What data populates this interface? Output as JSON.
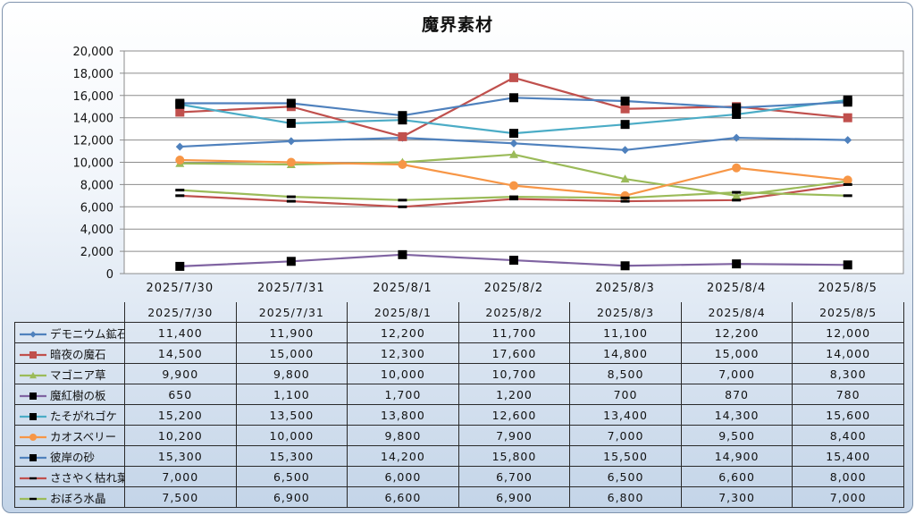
{
  "chart_data": {
    "type": "line",
    "title": "魔界素材",
    "xlabel": "",
    "ylabel": "",
    "ylim": [
      0,
      20000
    ],
    "ytick_step": 2000,
    "grid": "horizontal",
    "legend": "data-table",
    "categories": [
      "2025/7/30",
      "2025/7/31",
      "2025/8/1",
      "2025/8/2",
      "2025/8/3",
      "2025/8/4",
      "2025/8/5"
    ],
    "series": [
      {
        "name": "デモニウム鉱石",
        "values": [
          11400,
          11900,
          12200,
          11700,
          11100,
          12200,
          12000
        ],
        "color": "#4f81bd",
        "marker": "diamond"
      },
      {
        "name": "暗夜の魔石",
        "values": [
          14500,
          15000,
          12300,
          17600,
          14800,
          15000,
          14000
        ],
        "color": "#c0504d",
        "marker": "square"
      },
      {
        "name": "マゴニア草",
        "values": [
          9900,
          9800,
          10000,
          10700,
          8500,
          7000,
          8300
        ],
        "color": "#9bbb59",
        "marker": "triangle"
      },
      {
        "name": "魔紅樹の板",
        "values": [
          650,
          1100,
          1700,
          1200,
          700,
          870,
          780
        ],
        "color": "#8064a2",
        "marker": "blacksquare"
      },
      {
        "name": "たそがれゴケ",
        "values": [
          15200,
          13500,
          13800,
          12600,
          13400,
          14300,
          15600
        ],
        "color": "#4bacc6",
        "marker": "blacksquare"
      },
      {
        "name": "カオスベリー",
        "values": [
          10200,
          10000,
          9800,
          7900,
          7000,
          9500,
          8400
        ],
        "color": "#f79646",
        "marker": "circle"
      },
      {
        "name": "彼岸の砂",
        "values": [
          15300,
          15300,
          14200,
          15800,
          15500,
          14900,
          15400
        ],
        "color": "#4f81bd",
        "marker": "blacksquare"
      },
      {
        "name": "ささやく枯れ葉",
        "values": [
          7000,
          6500,
          6000,
          6700,
          6500,
          6600,
          8000
        ],
        "color": "#c0504d",
        "marker": "dash"
      },
      {
        "name": "おぼろ水晶",
        "values": [
          7500,
          6900,
          6600,
          6900,
          6800,
          7300,
          7000
        ],
        "color": "#9bbb59",
        "marker": "dash"
      }
    ]
  }
}
